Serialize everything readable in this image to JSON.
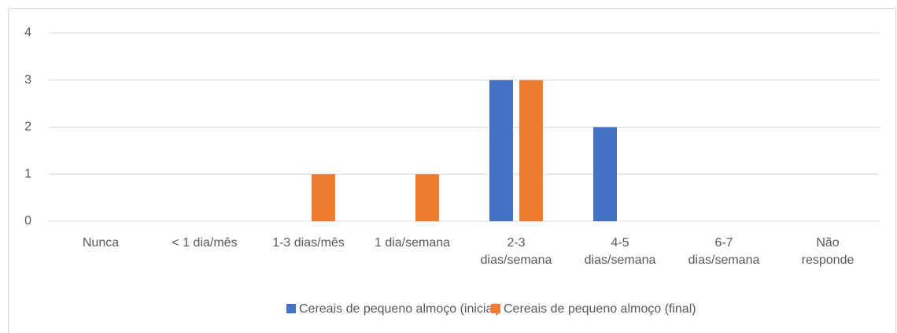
{
  "chart_data": {
    "type": "bar",
    "categories": [
      "Nunca",
      "< 1 dia/mês",
      "1-3 dias/mês",
      "1 dia/semana",
      "2-3\ndias/semana",
      "4-5\ndias/semana",
      "6-7\ndias/semana",
      "Não\nresponde"
    ],
    "series": [
      {
        "name": "Cereais de pequeno almoço (inicial)",
        "color": "#4472c4",
        "values": [
          0,
          0,
          0,
          0,
          3,
          2,
          0,
          0
        ]
      },
      {
        "name": "Cereais de pequeno almoço (final)",
        "color": "#ed7d31",
        "values": [
          0,
          0,
          1,
          1,
          3,
          0,
          0,
          0
        ]
      }
    ],
    "ylim": [
      0,
      4
    ],
    "yticks": [
      0,
      1,
      2,
      3,
      4
    ],
    "grid": true,
    "legend": "bottom"
  }
}
